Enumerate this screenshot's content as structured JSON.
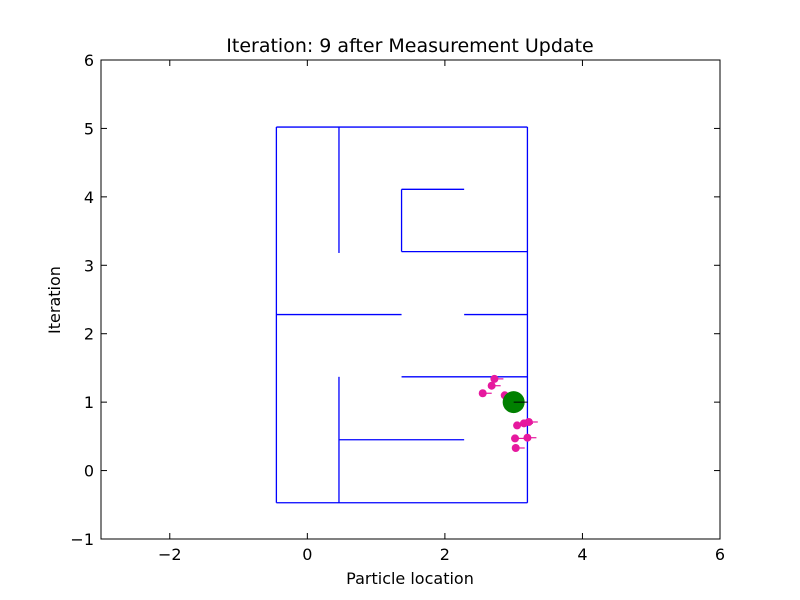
{
  "chart_data": {
    "type": "scatter",
    "title": "Iteration: 9 after Measurement Update",
    "xlabel": "Particle location",
    "ylabel": "Iteration",
    "xlim": [
      -3,
      6
    ],
    "ylim": [
      -1,
      6
    ],
    "xticks": [
      -2,
      0,
      2,
      4,
      6
    ],
    "yticks": [
      -1,
      0,
      1,
      2,
      3,
      4,
      5,
      6
    ],
    "xtick_labels": [
      "−2",
      "0",
      "2",
      "4",
      "6"
    ],
    "ytick_labels": [
      "−1",
      "0",
      "1",
      "2",
      "3",
      "4",
      "5",
      "6"
    ],
    "grid": false,
    "colors": {
      "walls": "#0000ff",
      "particles": "#e6199e",
      "robot": "#008000",
      "axes": "#000000"
    },
    "walls": [
      {
        "x": [
          -0.45,
          3.2
        ],
        "y": [
          5.02,
          5.02
        ]
      },
      {
        "x": [
          -0.45,
          3.2
        ],
        "y": [
          -0.47,
          -0.47
        ]
      },
      {
        "x": [
          -0.45,
          -0.45
        ],
        "y": [
          -0.47,
          5.02
        ]
      },
      {
        "x": [
          3.2,
          3.2
        ],
        "y": [
          -0.47,
          5.02
        ]
      },
      {
        "x": [
          0.46,
          0.46
        ],
        "y": [
          3.18,
          5.02
        ]
      },
      {
        "x": [
          1.37,
          2.28
        ],
        "y": [
          4.11,
          4.11
        ]
      },
      {
        "x": [
          1.37,
          1.37
        ],
        "y": [
          3.2,
          4.11
        ]
      },
      {
        "x": [
          1.37,
          3.2
        ],
        "y": [
          3.2,
          3.2
        ]
      },
      {
        "x": [
          -0.45,
          1.37
        ],
        "y": [
          2.28,
          2.28
        ]
      },
      {
        "x": [
          2.28,
          3.2
        ],
        "y": [
          2.28,
          2.28
        ]
      },
      {
        "x": [
          1.37,
          3.2
        ],
        "y": [
          1.37,
          1.37
        ]
      },
      {
        "x": [
          0.46,
          0.46
        ],
        "y": [
          -0.47,
          1.37
        ]
      },
      {
        "x": [
          0.46,
          2.28
        ],
        "y": [
          0.45,
          0.45
        ]
      }
    ],
    "robot": {
      "x": 3.0,
      "y": 1.0,
      "heading_deg": 0
    },
    "particles": [
      {
        "x": 2.72,
        "y": 1.34,
        "heading_deg": 0
      },
      {
        "x": 2.68,
        "y": 1.24,
        "heading_deg": 0
      },
      {
        "x": 2.55,
        "y": 1.13,
        "heading_deg": 0
      },
      {
        "x": 2.87,
        "y": 1.1,
        "heading_deg": 0
      },
      {
        "x": 2.94,
        "y": 1.02,
        "heading_deg": 0
      },
      {
        "x": 3.22,
        "y": 0.71,
        "heading_deg": 0
      },
      {
        "x": 3.15,
        "y": 0.69,
        "heading_deg": 0
      },
      {
        "x": 3.05,
        "y": 0.66,
        "heading_deg": 0
      },
      {
        "x": 3.2,
        "y": 0.48,
        "heading_deg": 0
      },
      {
        "x": 3.02,
        "y": 0.47,
        "heading_deg": 0
      },
      {
        "x": 3.03,
        "y": 0.33,
        "heading_deg": 0
      }
    ]
  }
}
